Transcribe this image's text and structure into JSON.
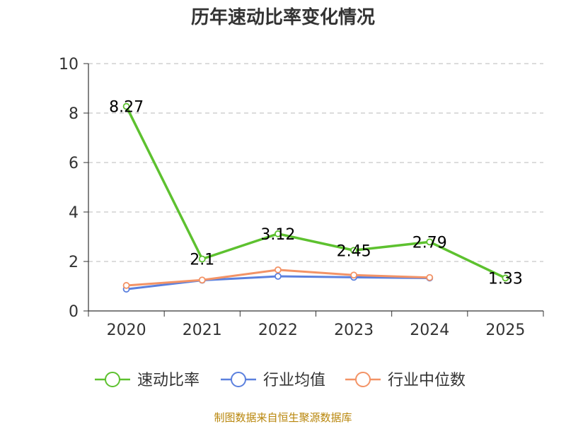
{
  "chart_data": {
    "type": "line",
    "title": "历年速动比率变化情况",
    "categories": [
      "2020",
      "2021",
      "2022",
      "2023",
      "2024",
      "2025"
    ],
    "ylim": [
      0,
      10
    ],
    "yticks": [
      0,
      2,
      4,
      6,
      8,
      10
    ],
    "grid": true,
    "legend_position": "bottom",
    "series": [
      {
        "name": "速动比率",
        "color": "#5dc12f",
        "values": [
          8.27,
          2.1,
          3.12,
          2.45,
          2.79,
          1.33
        ],
        "labels": [
          "8.27",
          "2.1",
          "3.12",
          "2.45",
          "2.79",
          "1.33"
        ]
      },
      {
        "name": "行业均值",
        "color": "#5b80de",
        "values": [
          0.88,
          1.24,
          1.4,
          1.36,
          1.33,
          null
        ]
      },
      {
        "name": "行业中位数",
        "color": "#f39366",
        "values": [
          1.03,
          1.25,
          1.66,
          1.45,
          1.35,
          null
        ]
      }
    ],
    "source": "制图数据来自恒生聚源数据库"
  }
}
